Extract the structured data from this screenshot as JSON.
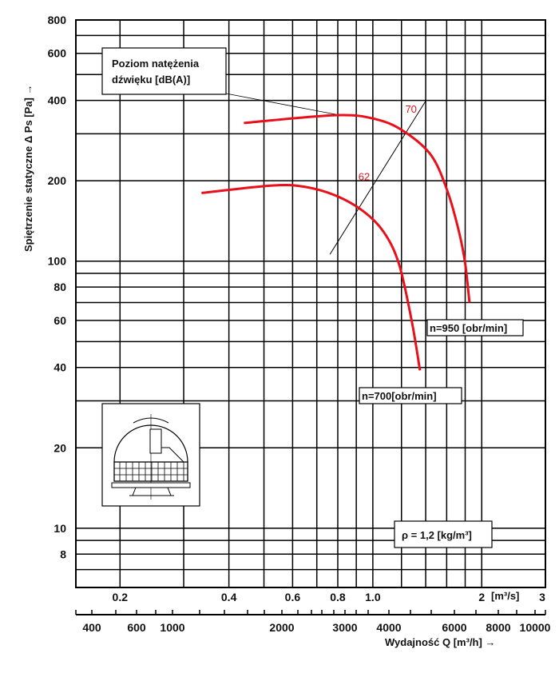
{
  "chart_data": {
    "type": "line",
    "title": "",
    "xlabel": "Wydajność Q [m³/h] →",
    "xlabel_secondary": "[m³/s]",
    "ylabel": "Spiętrzenie statyczne Δ Ps [Pa] →",
    "xscale": "log",
    "yscale": "log",
    "xlim": [
      0.151,
      3
    ],
    "ylim": [
      6,
      800
    ],
    "grid": true,
    "x_gridlines": [
      0.2,
      0.3,
      0.4,
      0.5,
      0.6,
      0.7,
      0.8,
      0.9,
      1.0,
      1.2,
      1.4,
      1.6,
      1.8,
      2.0
    ],
    "y_gridlines": [
      7,
      8,
      9,
      10,
      20,
      30,
      40,
      50,
      60,
      70,
      80,
      90,
      100,
      200,
      300,
      400,
      500,
      600,
      700,
      800
    ],
    "y_tick_labels": [
      "800",
      "600",
      "400",
      "200",
      "100",
      "80",
      "60",
      "40",
      "20",
      "10",
      "8"
    ],
    "y_tick_values": [
      800,
      600,
      400,
      200,
      100,
      80,
      60,
      40,
      20,
      10,
      8
    ],
    "x_tick_labels_m3s": [
      "0.2",
      "0.4",
      "0.6",
      "0.8",
      "1.0",
      "2",
      "3"
    ],
    "x_tick_values_m3s": [
      0.2,
      0.4,
      0.6,
      0.8,
      1.0,
      2,
      3
    ],
    "x_tick_labels_m3h": [
      "400",
      "600",
      "1000",
      "2000",
      "3000",
      "4000",
      "6000",
      "8000",
      "10000"
    ],
    "series": [
      {
        "name": "n=950 [obr/min]",
        "color": "#e8101a",
        "x": [
          0.44,
          0.79,
          1.02,
          1.22,
          1.45,
          1.61,
          1.73,
          1.8,
          1.85
        ],
        "y": [
          329,
          352,
          340,
          306,
          249,
          182,
          129,
          98,
          70
        ]
      },
      {
        "name": "n=700[obr/min]",
        "color": "#e8101a",
        "x": [
          0.336,
          0.526,
          0.646,
          0.79,
          0.94,
          1.07,
          1.18,
          1.28,
          1.35
        ],
        "y": [
          180,
          192,
          190,
          176,
          154,
          129,
          98,
          60,
          39
        ]
      }
    ],
    "sound_line": {
      "x": [
        0.761,
        1.4
      ],
      "y": [
        106,
        398
      ]
    },
    "sound_levels": [
      {
        "label": "70",
        "x": 1.28,
        "y": 340
      },
      {
        "label": "62",
        "x": 0.95,
        "y": 190
      }
    ],
    "annotations": {
      "sound_box_line1": "Poziom natężenia",
      "sound_box_line2": "dźwięku [dB(A)]",
      "density": "ρ = 1,2 [kg/m³]"
    }
  }
}
